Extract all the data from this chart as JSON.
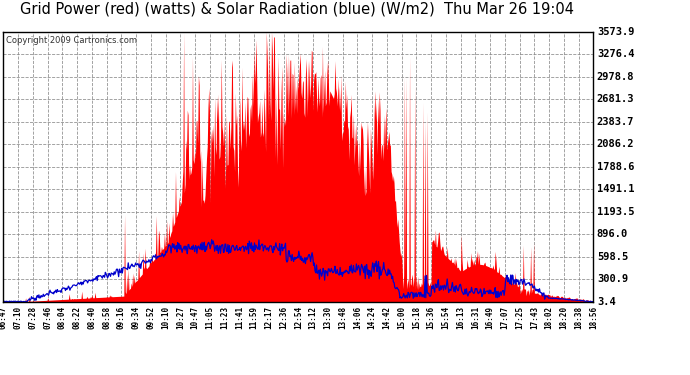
{
  "title": "Grid Power (red) (watts) & Solar Radiation (blue) (W/m2)  Thu Mar 26 19:04",
  "copyright": "Copyright 2009 Cartronics.com",
  "yticks": [
    3.4,
    300.9,
    598.5,
    896.0,
    1193.5,
    1491.1,
    1788.6,
    2086.2,
    2383.7,
    2681.3,
    2978.8,
    3276.4,
    3573.9
  ],
  "ymin": 3.4,
  "ymax": 3573.9,
  "bg_color": "#ffffff",
  "plot_bg_color": "#ffffff",
  "grid_color": "#888888",
  "red_color": "#ff0000",
  "blue_color": "#0000cc",
  "title_fontsize": 11,
  "xtick_labels": [
    "06:47",
    "07:10",
    "07:28",
    "07:46",
    "08:04",
    "08:22",
    "08:40",
    "08:58",
    "09:16",
    "09:34",
    "09:52",
    "10:10",
    "10:27",
    "10:47",
    "11:05",
    "11:23",
    "11:41",
    "11:59",
    "12:17",
    "12:36",
    "12:54",
    "13:12",
    "13:30",
    "13:48",
    "14:06",
    "14:24",
    "14:42",
    "15:00",
    "15:18",
    "15:36",
    "15:54",
    "16:13",
    "16:31",
    "16:49",
    "17:07",
    "17:25",
    "17:43",
    "18:02",
    "18:20",
    "18:38",
    "18:56"
  ]
}
